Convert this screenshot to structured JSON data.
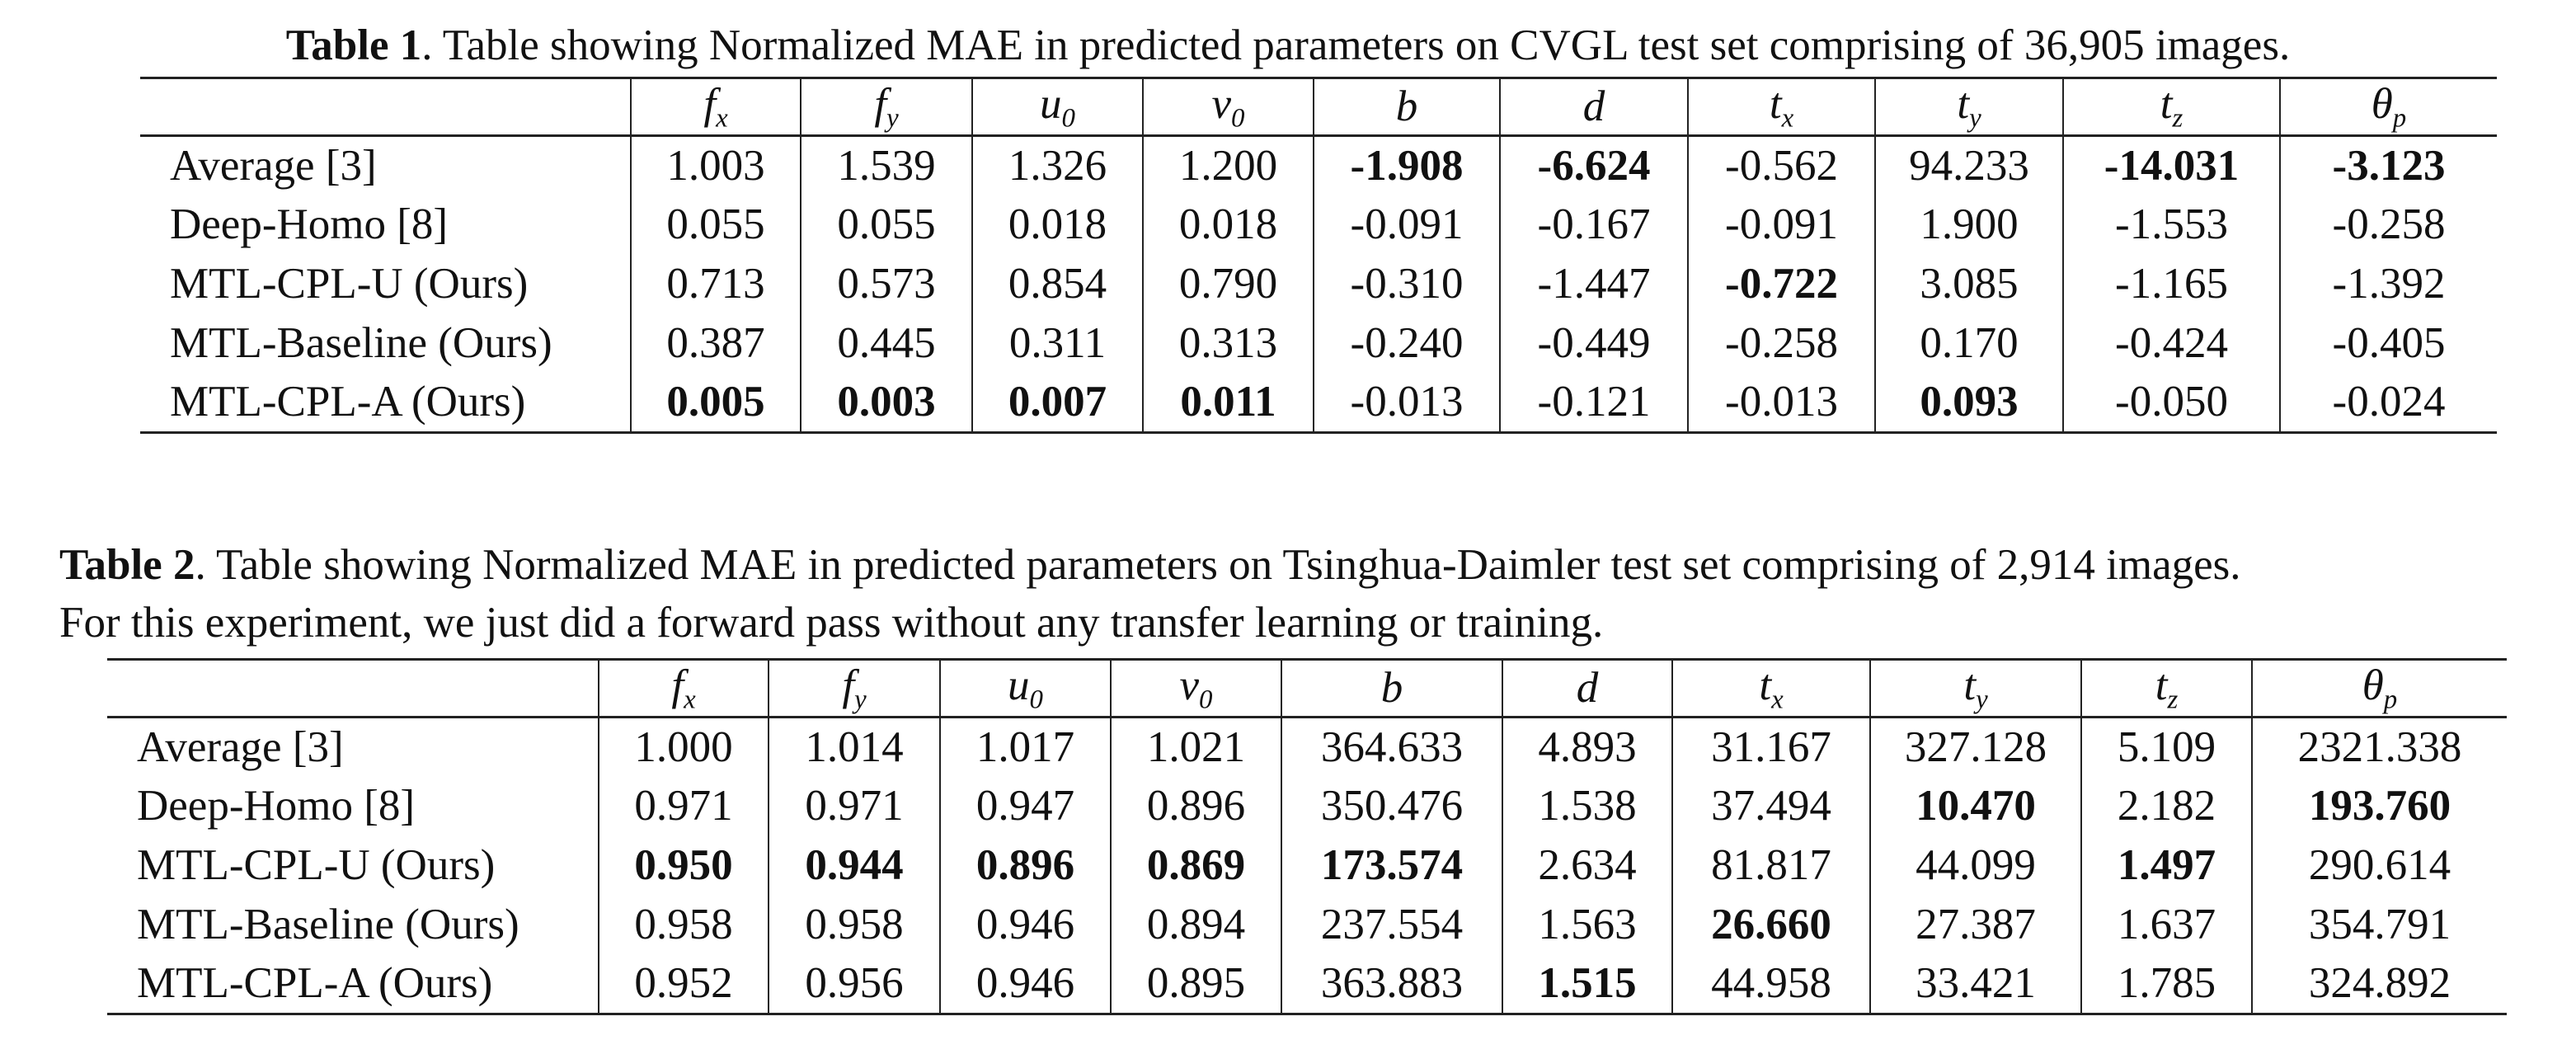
{
  "table1": {
    "caption_label": "Table 1",
    "caption_text": ". Table showing Normalized MAE in predicted parameters on CVGL test set comprising of 36,905 images.",
    "columns": [
      {
        "base": "f",
        "sub": "x"
      },
      {
        "base": "f",
        "sub": "y"
      },
      {
        "base": "u",
        "sub": "0"
      },
      {
        "base": "v",
        "sub": "0"
      },
      {
        "base": "b",
        "sub": ""
      },
      {
        "base": "d",
        "sub": ""
      },
      {
        "base": "t",
        "sub": "x"
      },
      {
        "base": "t",
        "sub": "y"
      },
      {
        "base": "t",
        "sub": "z"
      },
      {
        "base": "θ",
        "sub": "p"
      }
    ],
    "rows": [
      {
        "method": "Average [3]",
        "values": [
          "1.003",
          "1.539",
          "1.326",
          "1.200",
          "-1.908",
          "-6.624",
          "-0.562",
          "94.233",
          "-14.031",
          "-3.123"
        ],
        "bold": [
          4,
          5,
          8,
          9
        ]
      },
      {
        "method": "Deep-Homo [8]",
        "values": [
          "0.055",
          "0.055",
          "0.018",
          "0.018",
          "-0.091",
          "-0.167",
          "-0.091",
          "1.900",
          "-1.553",
          "-0.258"
        ],
        "bold": []
      },
      {
        "method": "MTL-CPL-U (Ours)",
        "values": [
          "0.713",
          "0.573",
          "0.854",
          "0.790",
          "-0.310",
          "-1.447",
          "-0.722",
          "3.085",
          "-1.165",
          "-1.392"
        ],
        "bold": [
          6
        ]
      },
      {
        "method": "MTL-Baseline (Ours)",
        "values": [
          "0.387",
          "0.445",
          "0.311",
          "0.313",
          "-0.240",
          "-0.449",
          "-0.258",
          "0.170",
          "-0.424",
          "-0.405"
        ],
        "bold": []
      },
      {
        "method": "MTL-CPL-A (Ours)",
        "values": [
          "0.005",
          "0.003",
          "0.007",
          "0.011",
          "-0.013",
          "-0.121",
          "-0.013",
          "0.093",
          "-0.050",
          "-0.024"
        ],
        "bold": [
          0,
          1,
          2,
          3,
          7
        ]
      }
    ]
  },
  "table2": {
    "caption_label": "Table 2",
    "caption_text": ". Table showing Normalized MAE in predicted parameters on Tsinghua-Daimler test set comprising of 2,914 images.",
    "caption_line2": "For this experiment, we just did a forward pass without any transfer learning or training.",
    "columns": [
      {
        "base": "f",
        "sub": "x"
      },
      {
        "base": "f",
        "sub": "y"
      },
      {
        "base": "u",
        "sub": "0"
      },
      {
        "base": "v",
        "sub": "0"
      },
      {
        "base": "b",
        "sub": ""
      },
      {
        "base": "d",
        "sub": ""
      },
      {
        "base": "t",
        "sub": "x"
      },
      {
        "base": "t",
        "sub": "y"
      },
      {
        "base": "t",
        "sub": "z"
      },
      {
        "base": "θ",
        "sub": "p"
      }
    ],
    "rows": [
      {
        "method": "Average [3]",
        "values": [
          "1.000",
          "1.014",
          "1.017",
          "1.021",
          "364.633",
          "4.893",
          "31.167",
          "327.128",
          "5.109",
          "2321.338"
        ],
        "bold": []
      },
      {
        "method": "Deep-Homo [8]",
        "values": [
          "0.971",
          "0.971",
          "0.947",
          "0.896",
          "350.476",
          "1.538",
          "37.494",
          "10.470",
          "2.182",
          "193.760"
        ],
        "bold": [
          7,
          9
        ]
      },
      {
        "method": "MTL-CPL-U (Ours)",
        "values": [
          "0.950",
          "0.944",
          "0.896",
          "0.869",
          "173.574",
          "2.634",
          "81.817",
          "44.099",
          "1.497",
          "290.614"
        ],
        "bold": [
          0,
          1,
          2,
          3,
          4,
          8
        ]
      },
      {
        "method": "MTL-Baseline (Ours)",
        "values": [
          "0.958",
          "0.958",
          "0.946",
          "0.894",
          "237.554",
          "1.563",
          "26.660",
          "27.387",
          "1.637",
          "354.791"
        ],
        "bold": [
          6
        ]
      },
      {
        "method": "MTL-CPL-A (Ours)",
        "values": [
          "0.952",
          "0.956",
          "0.946",
          "0.895",
          "363.883",
          "1.515",
          "44.958",
          "33.421",
          "1.785",
          "324.892"
        ],
        "bold": [
          5
        ]
      }
    ]
  }
}
